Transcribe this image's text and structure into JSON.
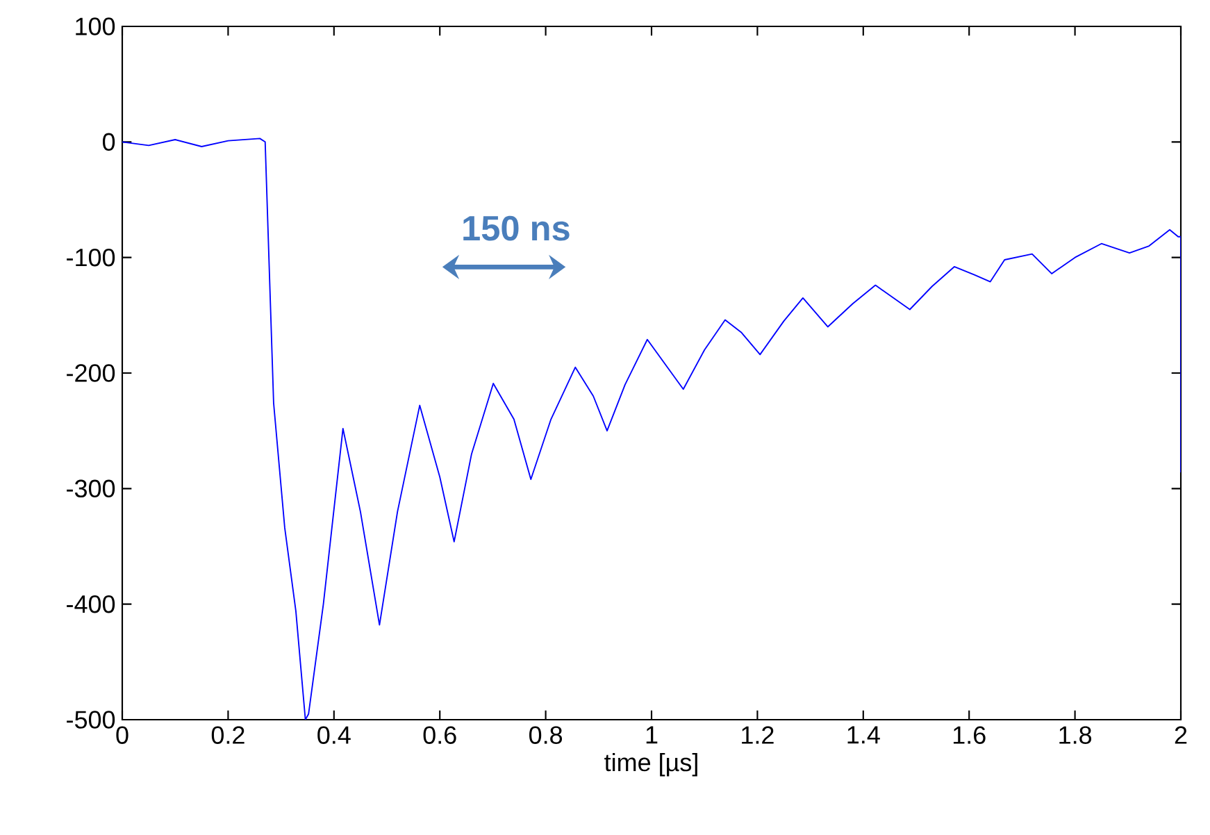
{
  "chart_data": {
    "type": "line",
    "xlabel": "time [µs]",
    "annotations": [
      "150 ns"
    ],
    "xlim": [
      0,
      2
    ],
    "ylim": [
      -500,
      100
    ],
    "xticks": [
      0,
      0.2,
      0.4,
      0.6,
      0.8,
      1,
      1.2,
      1.4,
      1.6,
      1.8,
      2
    ],
    "yticks": [
      -500,
      -400,
      -300,
      -200,
      -100,
      0,
      100
    ],
    "grid": false,
    "marker": "none",
    "line_style": "solid",
    "series": [
      {
        "color": "#0000ff",
        "x": [
          0,
          0.05,
          0.1,
          0.15,
          0.2,
          0.26,
          0.27,
          0.286,
          0.307,
          0.328,
          0.346,
          0.352,
          0.38,
          0.417,
          0.45,
          0.486,
          0.52,
          0.562,
          0.6,
          0.627,
          0.66,
          0.701,
          0.74,
          0.772,
          0.81,
          0.856,
          0.89,
          0.916,
          0.95,
          0.992,
          1.03,
          1.06,
          1.1,
          1.139,
          1.17,
          1.205,
          1.25,
          1.286,
          1.333,
          1.38,
          1.423,
          1.488,
          1.53,
          1.572,
          1.61,
          1.64,
          1.667,
          1.719,
          1.756,
          1.8,
          1.85,
          1.903,
          1.94,
          1.979,
          1.995,
          2,
          2
        ],
        "values": [
          0,
          -3,
          2,
          -4,
          1,
          3,
          0,
          -226,
          -334,
          -406,
          -500,
          -495,
          -400,
          -248,
          -320,
          -418,
          -320,
          -228,
          -290,
          -346,
          -270,
          -209,
          -240,
          -292,
          -240,
          -195,
          -220,
          -250,
          -210,
          -171,
          -195,
          -214,
          -180,
          -154,
          -165,
          -184,
          -155,
          -135,
          -160,
          -140,
          -124,
          -145,
          -125,
          -108,
          -115,
          -121,
          -102,
          -97,
          -114,
          -100,
          -88,
          -96,
          -90,
          -76,
          -82,
          -82,
          -286
        ]
      }
    ]
  }
}
